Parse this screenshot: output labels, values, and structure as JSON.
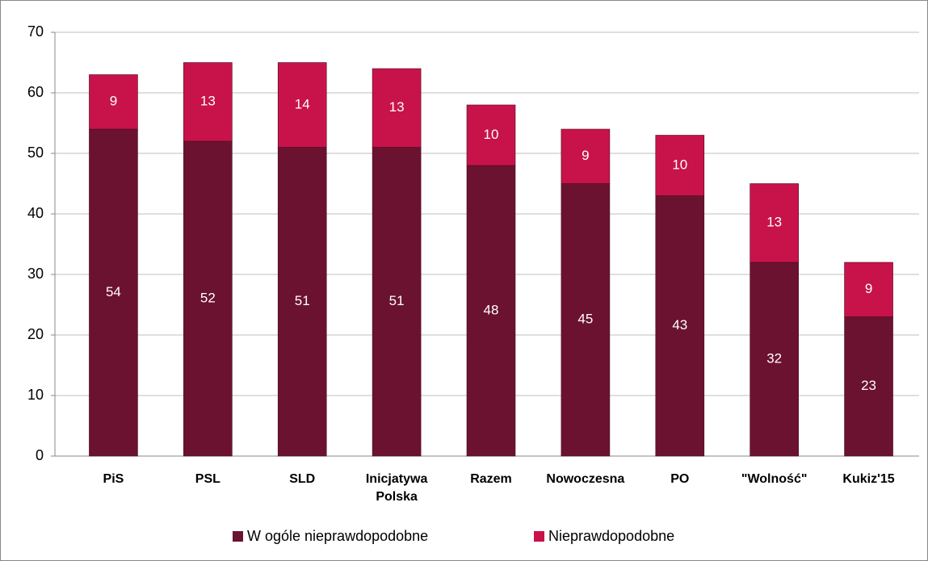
{
  "chart_data": {
    "type": "stacked_bar",
    "categories": [
      "PiS",
      "PSL",
      "SLD",
      "Inicjatywa Polska",
      "Razem",
      "Nowoczesna",
      "PO",
      "\"Wolność\"",
      "Kukiz'15"
    ],
    "series": [
      {
        "name": "W ogóle nieprawdopodobne",
        "color": "#6b1230",
        "values": [
          54,
          52,
          51,
          51,
          48,
          45,
          43,
          32,
          23
        ]
      },
      {
        "name": "Nieprawdopodobne",
        "color": "#c8134a",
        "values": [
          9,
          13,
          14,
          13,
          10,
          9,
          10,
          13,
          9
        ]
      }
    ],
    "ylim": [
      0,
      70
    ],
    "yticks": [
      0,
      10,
      20,
      30,
      40,
      50,
      60,
      70
    ],
    "grid": true,
    "legend": "bottom"
  }
}
